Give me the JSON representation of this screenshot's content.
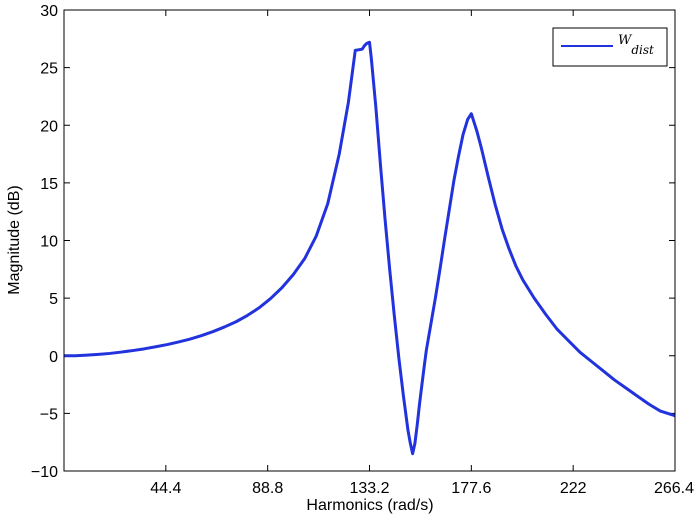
{
  "chart_data": {
    "type": "line",
    "xlabel": "Harmonics  (rad/s)",
    "ylabel": "Magnitude (dB)",
    "xlim": [
      0,
      266.4
    ],
    "ylim": [
      -10,
      30
    ],
    "xticks": [
      44.4,
      88.8,
      133.2,
      177.6,
      222,
      266.4
    ],
    "xtick_labels": [
      "44.4",
      "88.8",
      "133.2",
      "177.6",
      "222",
      "266.4"
    ],
    "yticks": [
      -10,
      -5,
      0,
      5,
      10,
      15,
      20,
      25,
      30
    ],
    "ytick_labels": [
      "−10",
      "−5",
      "0",
      "5",
      "10",
      "15",
      "20",
      "25",
      "30"
    ],
    "grid": false,
    "legend_position": "top-right",
    "series": [
      {
        "name_main": "W",
        "name_sub": "dist",
        "color": "#2233dd",
        "x": [
          0,
          5,
          10,
          15,
          20,
          25,
          30,
          35,
          40,
          45,
          50,
          55,
          60,
          65,
          70,
          75,
          80,
          85,
          90,
          95,
          100,
          105,
          110,
          115,
          120,
          124,
          127,
          130,
          131,
          132,
          133.2,
          134,
          136,
          138,
          140,
          142,
          144,
          146,
          148,
          150,
          151,
          152,
          153,
          154,
          155,
          156,
          157,
          158,
          160,
          162,
          164,
          166,
          168,
          170,
          172,
          174,
          176,
          177.6,
          180,
          182,
          185,
          188,
          191,
          194,
          197,
          200,
          205,
          210,
          215,
          220,
          225,
          230,
          235,
          240,
          245,
          250,
          255,
          260,
          266.4
        ],
        "y": [
          0,
          0,
          0.05,
          0.12,
          0.2,
          0.32,
          0.45,
          0.6,
          0.78,
          0.97,
          1.2,
          1.45,
          1.75,
          2.1,
          2.5,
          2.95,
          3.5,
          4.15,
          4.95,
          5.9,
          7.05,
          8.45,
          10.4,
          13.2,
          17.5,
          22,
          26.5,
          26.6,
          26.9,
          27.1,
          27.2,
          25.8,
          21.5,
          16.5,
          11.8,
          7.5,
          3.5,
          -0.2,
          -3.5,
          -6.5,
          -7.6,
          -8.5,
          -7.6,
          -6,
          -4.2,
          -2.6,
          -1,
          0.5,
          2.8,
          5.1,
          7.6,
          10.2,
          12.7,
          15.2,
          17.3,
          19.2,
          20.5,
          21,
          19.5,
          18,
          15.5,
          13.1,
          11,
          9.3,
          7.8,
          6.6,
          5,
          3.6,
          2.3,
          1.3,
          0.3,
          -0.5,
          -1.3,
          -2.1,
          -2.8,
          -3.5,
          -4.2,
          -4.8,
          -5.2
        ]
      }
    ]
  }
}
